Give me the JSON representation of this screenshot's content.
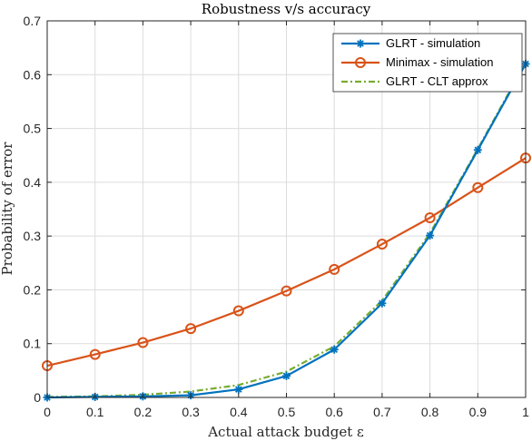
{
  "chart_data": {
    "type": "line",
    "title": "Robustness v/s accuracy",
    "xlabel": "Actual attack budget ε",
    "ylabel": "Probability of error",
    "xlim": [
      0,
      1
    ],
    "ylim": [
      0,
      0.7
    ],
    "xticks": [
      "0",
      "0.1",
      "0.2",
      "0.3",
      "0.4",
      "0.5",
      "0.6",
      "0.7",
      "0.8",
      "0.9",
      "1"
    ],
    "yticks": [
      "0",
      "0.1",
      "0.2",
      "0.3",
      "0.4",
      "0.5",
      "0.6",
      "0.7"
    ],
    "grid": true,
    "legend_position": "top-right",
    "x": [
      0,
      0.1,
      0.2,
      0.3,
      0.4,
      0.5,
      0.6,
      0.7,
      0.8,
      0.9,
      1
    ],
    "series": [
      {
        "name": "GLRT - simulation",
        "color": "#0072BD",
        "marker": "asterisk",
        "line_style": "solid",
        "values": [
          0.0,
          0.001,
          0.002,
          0.004,
          0.015,
          0.04,
          0.089,
          0.175,
          0.301,
          0.46,
          0.62
        ]
      },
      {
        "name": "Minimax - simulation",
        "color": "#D95319",
        "marker": "circle",
        "line_style": "solid",
        "values": [
          0.059,
          0.08,
          0.102,
          0.128,
          0.161,
          0.198,
          0.238,
          0.285,
          0.334,
          0.39,
          0.445
        ]
      },
      {
        "name": "GLRT - CLT approx",
        "color": "#77AC30",
        "marker": "none",
        "line_style": "dash-dot",
        "values": [
          0.001,
          0.002,
          0.005,
          0.011,
          0.023,
          0.048,
          0.095,
          0.18,
          0.305,
          0.462,
          0.623
        ]
      }
    ]
  }
}
